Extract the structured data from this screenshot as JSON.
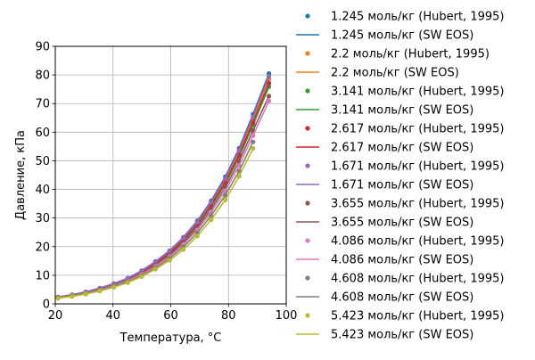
{
  "chart_data": {
    "type": "line",
    "title": "",
    "xlabel": "Температура, °C",
    "ylabel": "Давление, кПа",
    "xlim": [
      20,
      100
    ],
    "ylim": [
      0,
      90
    ],
    "xticks": [
      20,
      40,
      60,
      80,
      100
    ],
    "yticks": [
      0,
      10,
      20,
      30,
      40,
      50,
      60,
      70,
      80,
      90
    ],
    "grid": true,
    "legend_position": "outside-right",
    "x": [
      21,
      25.8,
      30.6,
      35.4,
      40.3,
      45.1,
      49.9,
      54.7,
      59.6,
      64.4,
      69.2,
      74,
      78.9,
      83.7,
      88.5,
      94
    ],
    "series": [
      {
        "name": "1.245 моль/кг (Hubert, 1995)",
        "kind": "points",
        "color": "#1f77b4",
        "values": [
          2.4,
          3.2,
          4.2,
          5.5,
          7.1,
          9.0,
          11.6,
          14.8,
          18.6,
          23.3,
          29.0,
          36.0,
          44.4,
          54.4,
          66.3,
          80.5
        ]
      },
      {
        "name": "1.245 моль/кг (SW EOS)",
        "kind": "line",
        "color": "#1f77b4",
        "values": [
          2.4,
          3.2,
          4.2,
          5.5,
          7.1,
          9.0,
          11.6,
          14.8,
          18.6,
          23.3,
          29.0,
          36.0,
          44.4,
          54.4,
          66.3,
          80.5
        ]
      },
      {
        "name": "2.2 моль/кг (Hubert, 1995)",
        "kind": "points",
        "color": "#ff7f0e",
        "values": [
          2.3,
          3.1,
          4.1,
          5.3,
          6.9,
          8.8,
          11.3,
          14.4,
          18.1,
          22.7,
          28.3,
          35.1,
          43.3,
          53.0,
          64.6,
          78.5
        ]
      },
      {
        "name": "2.2 моль/кг (SW EOS)",
        "kind": "line",
        "color": "#ff7f0e",
        "values": [
          2.3,
          3.1,
          4.1,
          5.3,
          6.9,
          8.8,
          11.3,
          14.4,
          18.1,
          22.7,
          28.3,
          35.1,
          43.3,
          53.0,
          64.6,
          78.5
        ]
      },
      {
        "name": "3.141 моль/кг (Hubert, 1995)",
        "kind": "points",
        "color": "#2ca02c",
        "values": [
          2.2,
          3.0,
          3.9,
          5.1,
          6.6,
          8.5,
          10.9,
          13.9,
          17.5,
          22.0,
          27.4,
          34.0,
          41.9,
          51.3,
          62.5,
          75.9
        ]
      },
      {
        "name": "3.141 моль/кг (SW EOS)",
        "kind": "line",
        "color": "#2ca02c",
        "values": [
          2.2,
          3.0,
          3.9,
          5.1,
          6.6,
          8.5,
          10.9,
          13.9,
          17.5,
          22.0,
          27.4,
          34.0,
          41.9,
          51.3,
          62.5,
          75.9
        ]
      },
      {
        "name": "2.617 моль/кг (Hubert, 1995)",
        "kind": "points",
        "color": "#d62728",
        "values": [
          2.3,
          3.0,
          4.0,
          5.2,
          6.8,
          8.7,
          11.1,
          14.1,
          17.8,
          22.3,
          27.8,
          34.5,
          42.5,
          52.1,
          63.5,
          77.1
        ]
      },
      {
        "name": "2.617 моль/кг (SW EOS)",
        "kind": "line",
        "color": "#d62728",
        "values": [
          2.3,
          3.0,
          4.0,
          5.2,
          6.8,
          8.7,
          11.1,
          14.1,
          17.8,
          22.3,
          27.8,
          34.5,
          42.5,
          52.1,
          63.5,
          77.1
        ]
      },
      {
        "name": "1.671 моль/кг (Hubert, 1995)",
        "kind": "points",
        "color": "#9467bd",
        "values": [
          2.4,
          3.1,
          4.1,
          5.4,
          7.0,
          8.9,
          11.4,
          14.6,
          18.4,
          23.0,
          28.6,
          35.5,
          43.8,
          53.7,
          65.4,
          79.5
        ]
      },
      {
        "name": "1.671 моль/кг (SW EOS)",
        "kind": "line",
        "color": "#9467bd",
        "values": [
          2.4,
          3.1,
          4.1,
          5.4,
          7.0,
          8.9,
          11.4,
          14.6,
          18.4,
          23.0,
          28.6,
          35.5,
          43.8,
          53.7,
          65.4,
          79.5
        ]
      },
      {
        "name": "3.655 моль/кг (Hubert, 1995)",
        "kind": "points",
        "color": "#8c564b",
        "values": [
          2.2,
          2.9,
          3.8,
          5.0,
          6.5,
          8.3,
          10.6,
          13.5,
          17.0,
          21.3,
          26.6,
          33.0,
          40.7,
          49.8,
          60.6,
          72.6
        ]
      },
      {
        "name": "3.655 моль/кг (SW EOS)",
        "kind": "line",
        "color": "#8c564b",
        "values": [
          2.2,
          2.9,
          3.8,
          5.0,
          6.5,
          8.3,
          10.6,
          13.5,
          17.0,
          21.3,
          26.6,
          33.0,
          40.7,
          49.8,
          60.6,
          72.6
        ]
      },
      {
        "name": "4.086 моль/кг (Hubert, 1995)",
        "kind": "points",
        "color": "#e377c2",
        "values": [
          2.1,
          2.8,
          3.7,
          4.9,
          6.3,
          8.1,
          10.3,
          13.1,
          16.5,
          20.7,
          25.8,
          32.0,
          39.5,
          48.3,
          58.8,
          70.9
        ]
      },
      {
        "name": "4.086 моль/кг (SW EOS)",
        "kind": "line",
        "color": "#e377c2",
        "values": [
          2.1,
          2.8,
          3.7,
          4.9,
          6.3,
          8.1,
          10.3,
          13.1,
          16.5,
          20.7,
          25.8,
          32.0,
          39.5,
          48.3,
          58.8,
          70.9
        ]
      },
      {
        "name": "4.608 моль/кг (Hubert, 1995)",
        "kind": "points",
        "color": "#7f7f7f",
        "values": [
          2.1,
          2.7,
          3.6,
          4.7,
          6.1,
          7.8,
          9.9,
          12.6,
          15.9,
          19.9,
          24.8,
          30.8,
          38.0,
          46.4,
          56.6,
          null
        ]
      },
      {
        "name": "4.608 моль/кг (SW EOS)",
        "kind": "line",
        "color": "#7f7f7f",
        "values": [
          2.1,
          2.7,
          3.6,
          4.7,
          6.1,
          7.8,
          9.9,
          12.6,
          15.9,
          19.9,
          24.8,
          30.8,
          38.0,
          46.4,
          56.6,
          null
        ]
      },
      {
        "name": "5.423 моль/кг (Hubert, 1995)",
        "kind": "points",
        "color": "#bcbd22",
        "values": [
          2.0,
          2.6,
          3.4,
          4.5,
          5.8,
          7.4,
          9.5,
          12.1,
          15.2,
          19.0,
          23.7,
          29.4,
          36.3,
          44.6,
          54.3,
          null
        ]
      },
      {
        "name": "5.423 моль/кг (SW EOS)",
        "kind": "line",
        "color": "#bcbd22",
        "values": [
          2.0,
          2.6,
          3.4,
          4.5,
          5.8,
          7.4,
          9.5,
          12.1,
          15.2,
          19.0,
          23.7,
          29.4,
          36.3,
          44.6,
          54.3,
          null
        ]
      }
    ]
  }
}
